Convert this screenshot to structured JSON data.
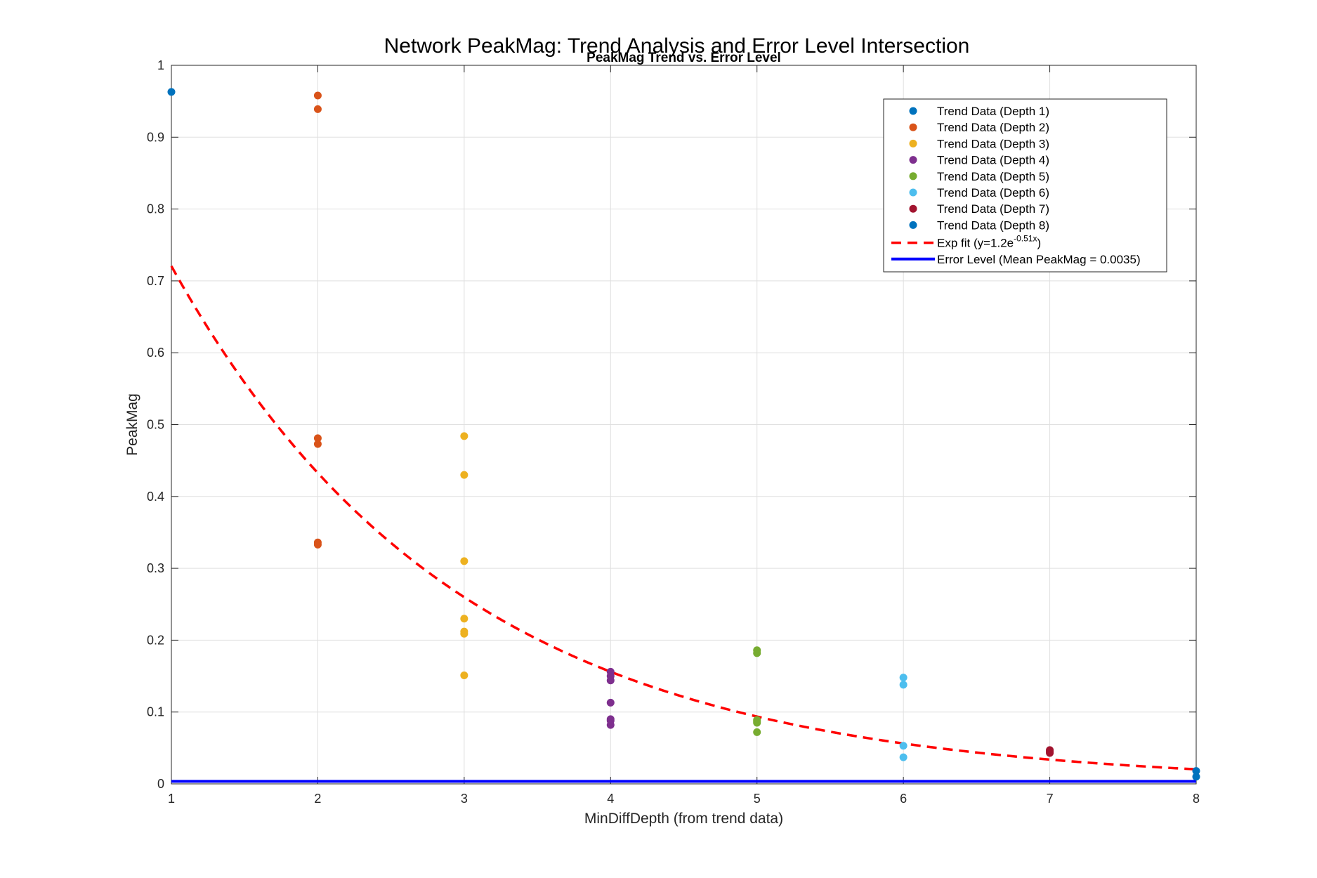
{
  "figure_title": "Network PeakMag: Trend Analysis and Error Level Intersection",
  "chart_data": {
    "type": "scatter",
    "title": "PeakMag Trend vs. Error Level",
    "xlabel": "MinDiffDepth (from trend data)",
    "ylabel": "PeakMag",
    "xlim": [
      1,
      8
    ],
    "ylim": [
      0,
      1
    ],
    "xticks": [
      1,
      2,
      3,
      4,
      5,
      6,
      7,
      8
    ],
    "yticks": [
      0,
      0.1,
      0.2,
      0.3,
      0.4,
      0.5,
      0.6,
      0.7,
      0.8,
      0.9,
      1
    ],
    "grid": true,
    "legend_location": "top-right",
    "series": [
      {
        "name": "Trend Data (Depth 1)",
        "color": "#0072BD",
        "x": [
          1
        ],
        "y": [
          0.963
        ]
      },
      {
        "name": "Trend Data (Depth 2)",
        "color": "#D95319",
        "x": [
          2,
          2,
          2,
          2,
          2,
          2
        ],
        "y": [
          0.958,
          0.939,
          0.481,
          0.473,
          0.336,
          0.333
        ]
      },
      {
        "name": "Trend Data (Depth 3)",
        "color": "#EDB120",
        "x": [
          3,
          3,
          3,
          3,
          3,
          3,
          3
        ],
        "y": [
          0.484,
          0.43,
          0.31,
          0.23,
          0.212,
          0.209,
          0.151
        ]
      },
      {
        "name": "Trend Data (Depth 4)",
        "color": "#7E2F8E",
        "x": [
          4,
          4,
          4,
          4,
          4,
          4,
          4
        ],
        "y": [
          0.156,
          0.15,
          0.144,
          0.113,
          0.09,
          0.088,
          0.082
        ]
      },
      {
        "name": "Trend Data (Depth 5)",
        "color": "#77AC30",
        "x": [
          5,
          5,
          5,
          5,
          5,
          5
        ],
        "y": [
          0.186,
          0.182,
          0.089,
          0.087,
          0.085,
          0.072
        ]
      },
      {
        "name": "Trend Data (Depth 6)",
        "color": "#4DBEEE",
        "x": [
          6,
          6,
          6,
          6
        ],
        "y": [
          0.148,
          0.138,
          0.053,
          0.037
        ]
      },
      {
        "name": "Trend Data (Depth 7)",
        "color": "#A2142F",
        "x": [
          7,
          7,
          7
        ],
        "y": [
          0.047,
          0.045,
          0.043
        ]
      },
      {
        "name": "Trend Data (Depth 8)",
        "color": "#0072BD",
        "x": [
          8,
          8
        ],
        "y": [
          0.018,
          0.01
        ]
      }
    ],
    "fit": {
      "name_prefix": "Exp fit (y=1.2e",
      "name_exponent": "-0.51x",
      "name_suffix": ")",
      "a": 1.2,
      "b": -0.51,
      "color": "#FF0000",
      "style": "dashed"
    },
    "error_level": {
      "name": "Error Level (Mean PeakMag = 0.0035)",
      "value": 0.0035,
      "color": "#0000FF"
    }
  }
}
